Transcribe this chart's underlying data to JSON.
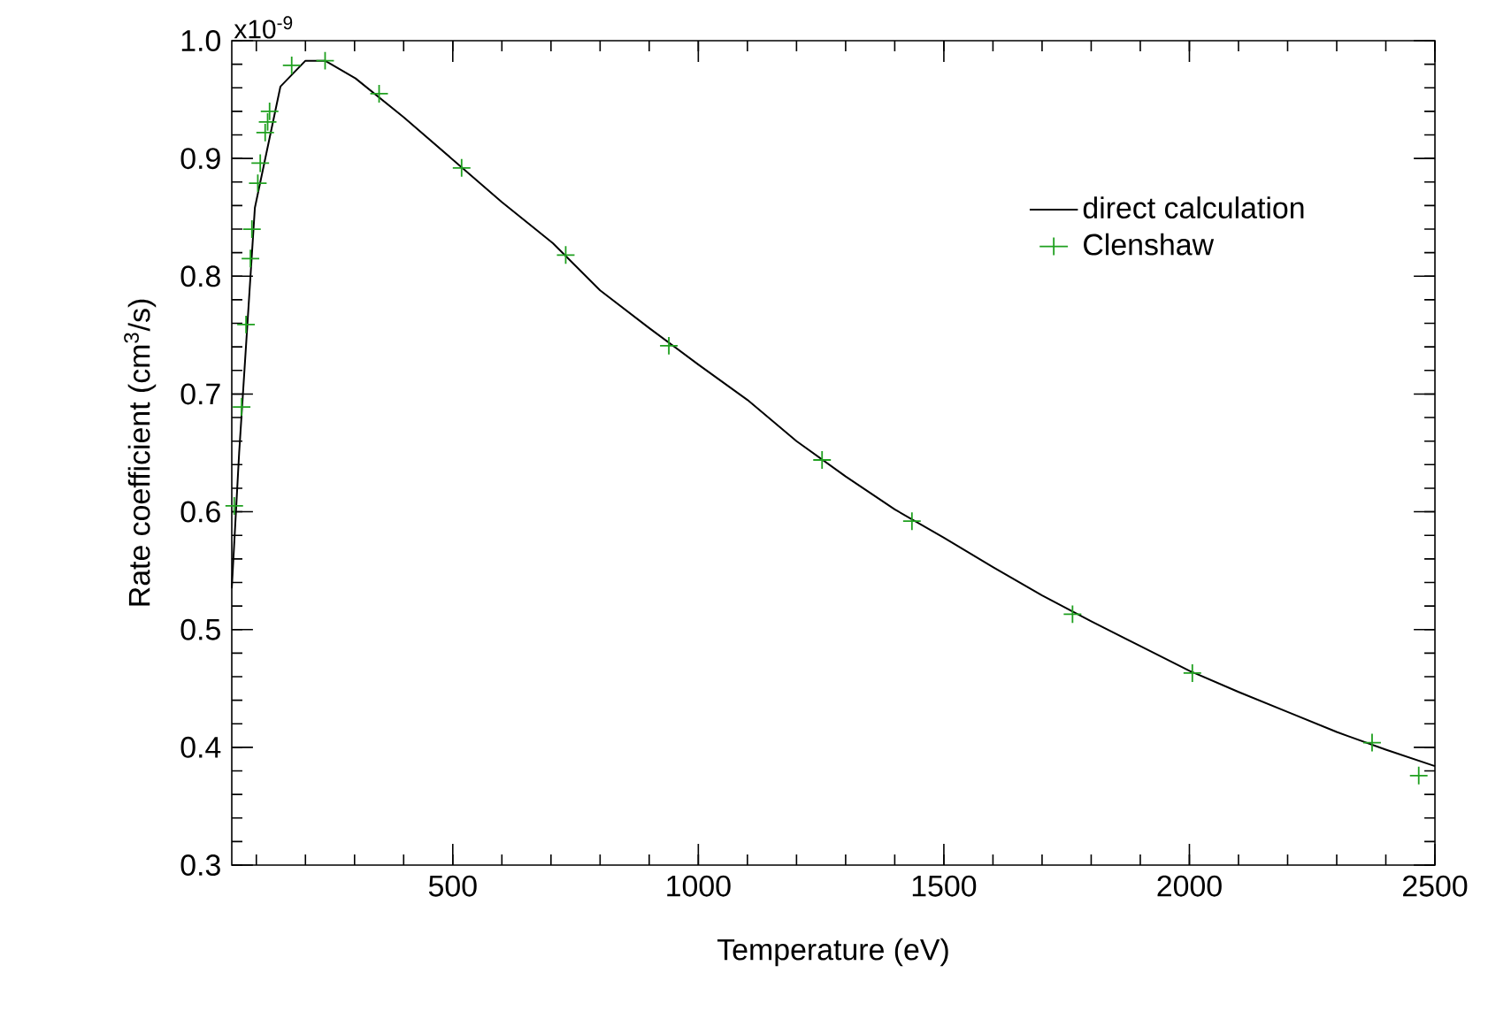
{
  "chart_data": {
    "type": "line",
    "xlabel": "Temperature (eV)",
    "ylabel": "Rate coefficient (cm$^{3}$/s)",
    "xlim": [
      50,
      2500
    ],
    "xticks": [
      500,
      1000,
      1500,
      2000,
      2500
    ],
    "ylim": [
      0.3,
      1.0
    ],
    "yticks": [
      0.3,
      0.4,
      0.5,
      0.6,
      0.7,
      0.8,
      0.9,
      {
        "value": 1,
        "label": "1.0"
      }
    ],
    "annotations": [
      "x10$^{-9}$"
    ],
    "legend": "top right",
    "grid": false,
    "series": [
      {
        "name": "direct calculation",
        "type": "line",
        "color": "#000000",
        "marker": "none",
        "line_style": "solid",
        "x": [
          50,
          65,
          97,
          149,
          200,
          240,
          302,
          400,
          500,
          600,
          704,
          800,
          900,
          1000,
          1100,
          1200,
          1300,
          1400,
          1500,
          1600,
          1700,
          1800,
          1900,
          2000,
          2100,
          2200,
          2300,
          2400,
          2500
        ],
        "values": [
          0.535,
          0.65,
          0.858,
          0.961,
          0.983,
          0.983,
          0.968,
          0.935,
          0.899,
          0.863,
          0.828,
          0.788,
          0.756,
          0.725,
          0.695,
          0.66,
          0.63,
          0.602,
          0.578,
          0.553,
          0.529,
          0.507,
          0.486,
          0.465,
          0.447,
          0.43,
          0.413,
          0.398,
          0.384
        ]
      },
      {
        "name": "Clenshaw",
        "type": "scatter",
        "color": "#1fa01f",
        "marker": "cross",
        "x": [
          55,
          70,
          79,
          88,
          91,
          103,
          108,
          118,
          123,
          127,
          172,
          240,
          350,
          518,
          730,
          940,
          1252,
          1435,
          1762,
          2006,
          2372,
          2467
        ],
        "values": [
          0.605,
          0.689,
          0.759,
          0.815,
          0.84,
          0.879,
          0.896,
          0.922,
          0.931,
          0.94,
          0.979,
          0.983,
          0.955,
          0.892,
          0.818,
          0.741,
          0.644,
          0.592,
          0.513,
          0.463,
          0.404,
          0.376
        ]
      }
    ]
  }
}
